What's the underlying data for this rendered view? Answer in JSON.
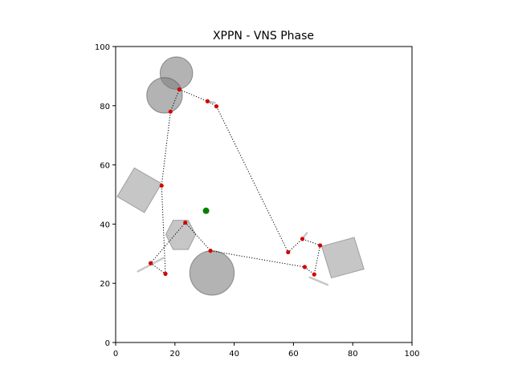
{
  "chart_data": {
    "type": "scatter",
    "title": "XPPN - VNS Phase",
    "xlabel": "",
    "ylabel": "",
    "xlim": [
      0,
      100
    ],
    "ylim": [
      0,
      100
    ],
    "grid": false,
    "x_ticks": [
      0,
      20,
      40,
      60,
      80,
      100
    ],
    "y_ticks": [
      0,
      20,
      40,
      60,
      80,
      100
    ],
    "start_point": {
      "x": 30.5,
      "y": 44.5,
      "color": "#008000"
    },
    "tour_points": [
      {
        "x": 21.5,
        "y": 85.5
      },
      {
        "x": 31.0,
        "y": 81.5
      },
      {
        "x": 34.0,
        "y": 79.8
      },
      {
        "x": 58.2,
        "y": 30.5
      },
      {
        "x": 63.0,
        "y": 35.0
      },
      {
        "x": 69.0,
        "y": 32.8
      },
      {
        "x": 67.0,
        "y": 23.0
      },
      {
        "x": 63.8,
        "y": 25.5
      },
      {
        "x": 32.0,
        "y": 31.0
      },
      {
        "x": 23.5,
        "y": 40.5
      },
      {
        "x": 11.8,
        "y": 26.8
      },
      {
        "x": 16.8,
        "y": 23.2
      },
      {
        "x": 15.5,
        "y": 53.0
      },
      {
        "x": 18.5,
        "y": 78.0
      }
    ],
    "tour_color": "#d40000",
    "line_color": "#000000",
    "obstacles": [
      {
        "shape": "circle",
        "cx": 20.5,
        "cy": 91.0,
        "r": 5.5
      },
      {
        "shape": "circle",
        "cx": 16.5,
        "cy": 83.5,
        "r": 6.0
      },
      {
        "shape": "circle",
        "cx": 32.5,
        "cy": 23.5,
        "r": 7.5
      },
      {
        "shape": "polygon",
        "points": [
          [
            6.3,
            59.0
          ],
          [
            15.5,
            53.7
          ],
          [
            9.7,
            43.9
          ],
          [
            0.5,
            49.3
          ]
        ]
      },
      {
        "shape": "polygon",
        "points": [
          [
            27.0,
            36.5
          ],
          [
            24.5,
            31.4
          ],
          [
            19.4,
            31.4
          ],
          [
            16.9,
            36.5
          ],
          [
            19.4,
            41.3
          ],
          [
            24.5,
            41.3
          ]
        ]
      },
      {
        "shape": "polygon",
        "points": [
          [
            80.5,
            35.5
          ],
          [
            83.8,
            24.8
          ],
          [
            72.8,
            21.8
          ],
          [
            69.5,
            32.5
          ]
        ]
      }
    ],
    "obstacle_fill": "#808080",
    "guide_segments": [
      {
        "x1": 7.5,
        "y1": 24.0,
        "x2": 16.0,
        "y2": 28.5
      },
      {
        "x1": 65.5,
        "y1": 22.0,
        "x2": 71.5,
        "y2": 19.5
      },
      {
        "x1": 63.0,
        "y1": 35.0,
        "x2": 64.5,
        "y2": 37.0
      },
      {
        "x1": 31.0,
        "y1": 81.5,
        "x2": 33.5,
        "y2": 81.0
      }
    ]
  }
}
